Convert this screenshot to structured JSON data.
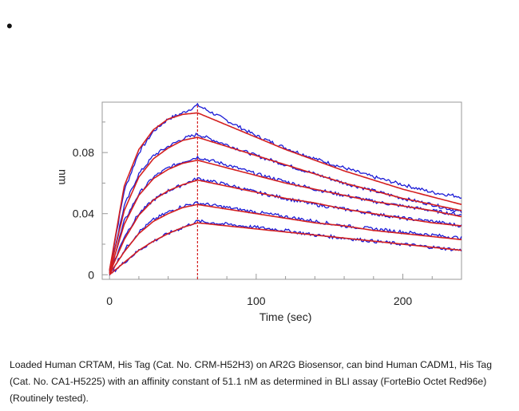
{
  "bullet": "•",
  "caption": "Loaded Human CRTAM, His Tag (Cat. No. CRM-H52H3) on AR2G Biosensor, can bind Human CADM1, His Tag (Cat. No. CA1-H5225) with an affinity constant of 51.1 nM as determined in BLI assay (ForteBio Octet Red96e) (Routinely tested).",
  "colors": {
    "measured": "#1a1ad6",
    "fit": "#d42020",
    "frame": "#999999"
  },
  "chart_data": {
    "type": "line",
    "xlabel": "Time (sec)",
    "ylabel": "nm",
    "xlim": [
      -5,
      240
    ],
    "ylim": [
      -0.003,
      0.113
    ],
    "x_ticks": [
      0,
      100,
      200
    ],
    "y_ticks": [
      0,
      0.04,
      0.08
    ],
    "y_tick_labels": [
      "0",
      "0.04",
      "0.08"
    ],
    "association_end_x": 60,
    "grid": false,
    "series": [
      {
        "x": [
          0,
          10,
          20,
          30,
          40,
          50,
          60,
          80,
          100,
          120,
          140,
          160,
          180,
          200,
          220,
          240
        ],
        "measured": [
          0.003,
          0.055,
          0.08,
          0.094,
          0.102,
          0.106,
          0.111,
          0.101,
          0.091,
          0.083,
          0.076,
          0.07,
          0.064,
          0.059,
          0.054,
          0.051
        ],
        "fit": [
          0.003,
          0.058,
          0.082,
          0.095,
          0.102,
          0.105,
          0.106,
          0.098,
          0.09,
          0.082,
          0.075,
          0.068,
          0.062,
          0.056,
          0.051,
          0.046
        ]
      },
      {
        "x": [
          0,
          10,
          20,
          30,
          40,
          50,
          60,
          80,
          100,
          120,
          140,
          160,
          180,
          200,
          220,
          240
        ],
        "measured": [
          0.002,
          0.045,
          0.066,
          0.078,
          0.084,
          0.089,
          0.092,
          0.085,
          0.078,
          0.072,
          0.066,
          0.06,
          0.055,
          0.05,
          0.046,
          0.041
        ],
        "fit": [
          0.002,
          0.042,
          0.064,
          0.076,
          0.083,
          0.088,
          0.09,
          0.084,
          0.078,
          0.072,
          0.066,
          0.06,
          0.055,
          0.05,
          0.046,
          0.042
        ]
      },
      {
        "x": [
          0,
          10,
          20,
          30,
          40,
          50,
          60,
          80,
          100,
          120,
          140,
          160,
          180,
          200,
          220,
          240
        ],
        "measured": [
          0.001,
          0.035,
          0.053,
          0.064,
          0.07,
          0.074,
          0.077,
          0.072,
          0.066,
          0.061,
          0.056,
          0.052,
          0.048,
          0.045,
          0.042,
          0.039
        ],
        "fit": [
          0.001,
          0.033,
          0.052,
          0.063,
          0.069,
          0.073,
          0.075,
          0.07,
          0.065,
          0.06,
          0.056,
          0.052,
          0.048,
          0.045,
          0.042,
          0.038
        ]
      },
      {
        "x": [
          0,
          10,
          20,
          30,
          40,
          50,
          60,
          80,
          100,
          120,
          140,
          160,
          180,
          200,
          220,
          240
        ],
        "measured": [
          0.001,
          0.025,
          0.04,
          0.049,
          0.055,
          0.059,
          0.063,
          0.059,
          0.054,
          0.05,
          0.046,
          0.043,
          0.04,
          0.037,
          0.035,
          0.032
        ],
        "fit": [
          0.001,
          0.023,
          0.039,
          0.049,
          0.055,
          0.059,
          0.062,
          0.058,
          0.054,
          0.05,
          0.047,
          0.043,
          0.04,
          0.037,
          0.034,
          0.032
        ]
      },
      {
        "x": [
          0,
          10,
          20,
          30,
          40,
          50,
          60,
          80,
          100,
          120,
          140,
          160,
          180,
          200,
          220,
          240
        ],
        "measured": [
          0.0005,
          0.016,
          0.028,
          0.036,
          0.041,
          0.045,
          0.047,
          0.044,
          0.041,
          0.038,
          0.035,
          0.032,
          0.03,
          0.028,
          0.026,
          0.024
        ],
        "fit": [
          0.0005,
          0.015,
          0.027,
          0.035,
          0.04,
          0.044,
          0.046,
          0.043,
          0.04,
          0.037,
          0.034,
          0.032,
          0.029,
          0.027,
          0.025,
          0.023
        ]
      },
      {
        "x": [
          0,
          10,
          20,
          30,
          40,
          50,
          60,
          80,
          100,
          120,
          140,
          160,
          180,
          200,
          220,
          240
        ],
        "measured": [
          0.0,
          0.008,
          0.016,
          0.022,
          0.027,
          0.031,
          0.035,
          0.033,
          0.031,
          0.029,
          0.026,
          0.024,
          0.022,
          0.02,
          0.018,
          0.016
        ],
        "fit": [
          0.0,
          0.008,
          0.016,
          0.022,
          0.027,
          0.031,
          0.034,
          0.032,
          0.03,
          0.028,
          0.026,
          0.024,
          0.022,
          0.02,
          0.018,
          0.016
        ]
      }
    ]
  }
}
